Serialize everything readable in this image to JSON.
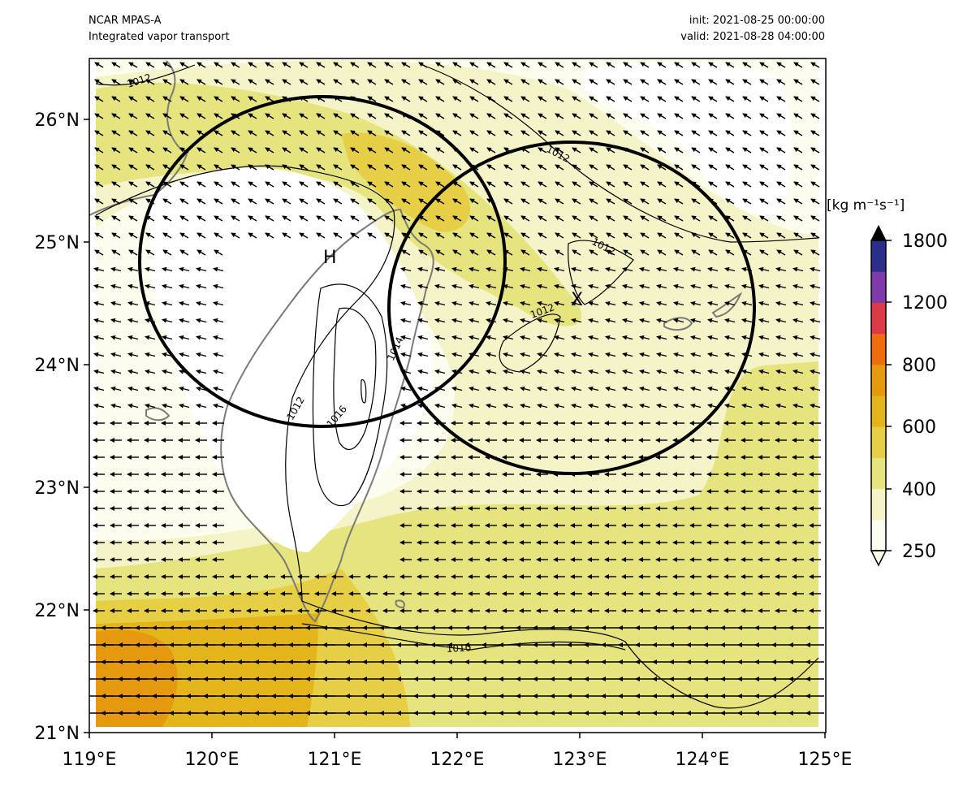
{
  "header": {
    "model": "NCAR MPAS-A",
    "field": "Integrated vapor transport",
    "init": "init: 2021-08-25 00:00:00",
    "valid": "valid: 2021-08-28 04:00:00"
  },
  "axes": {
    "x_ticks": [
      "119°E",
      "120°E",
      "121°E",
      "122°E",
      "123°E",
      "124°E",
      "125°E"
    ],
    "y_ticks": [
      "21°N",
      "22°N",
      "23°N",
      "24°N",
      "25°N",
      "26°N"
    ],
    "lon_range": [
      119,
      125
    ],
    "lat_range": [
      21,
      26.5
    ]
  },
  "colorbar": {
    "units": "[kg m⁻¹s⁻¹]",
    "tick_labels": [
      "250",
      "400",
      "600",
      "800",
      "1200",
      "1800"
    ],
    "colors": [
      "#fdfdee",
      "#f4f4c8",
      "#e6e47e",
      "#e6cf45",
      "#e3b51a",
      "#e59a0e",
      "#ef6c0f",
      "#dc3a48",
      "#7e3aa8",
      "#2c2f8a"
    ]
  },
  "markers": {
    "high_label": "H",
    "x_label": "X"
  },
  "isobar_labels": [
    "1012",
    "1012",
    "1012",
    "1012",
    "1012",
    "1014",
    "1016",
    "1010"
  ]
}
